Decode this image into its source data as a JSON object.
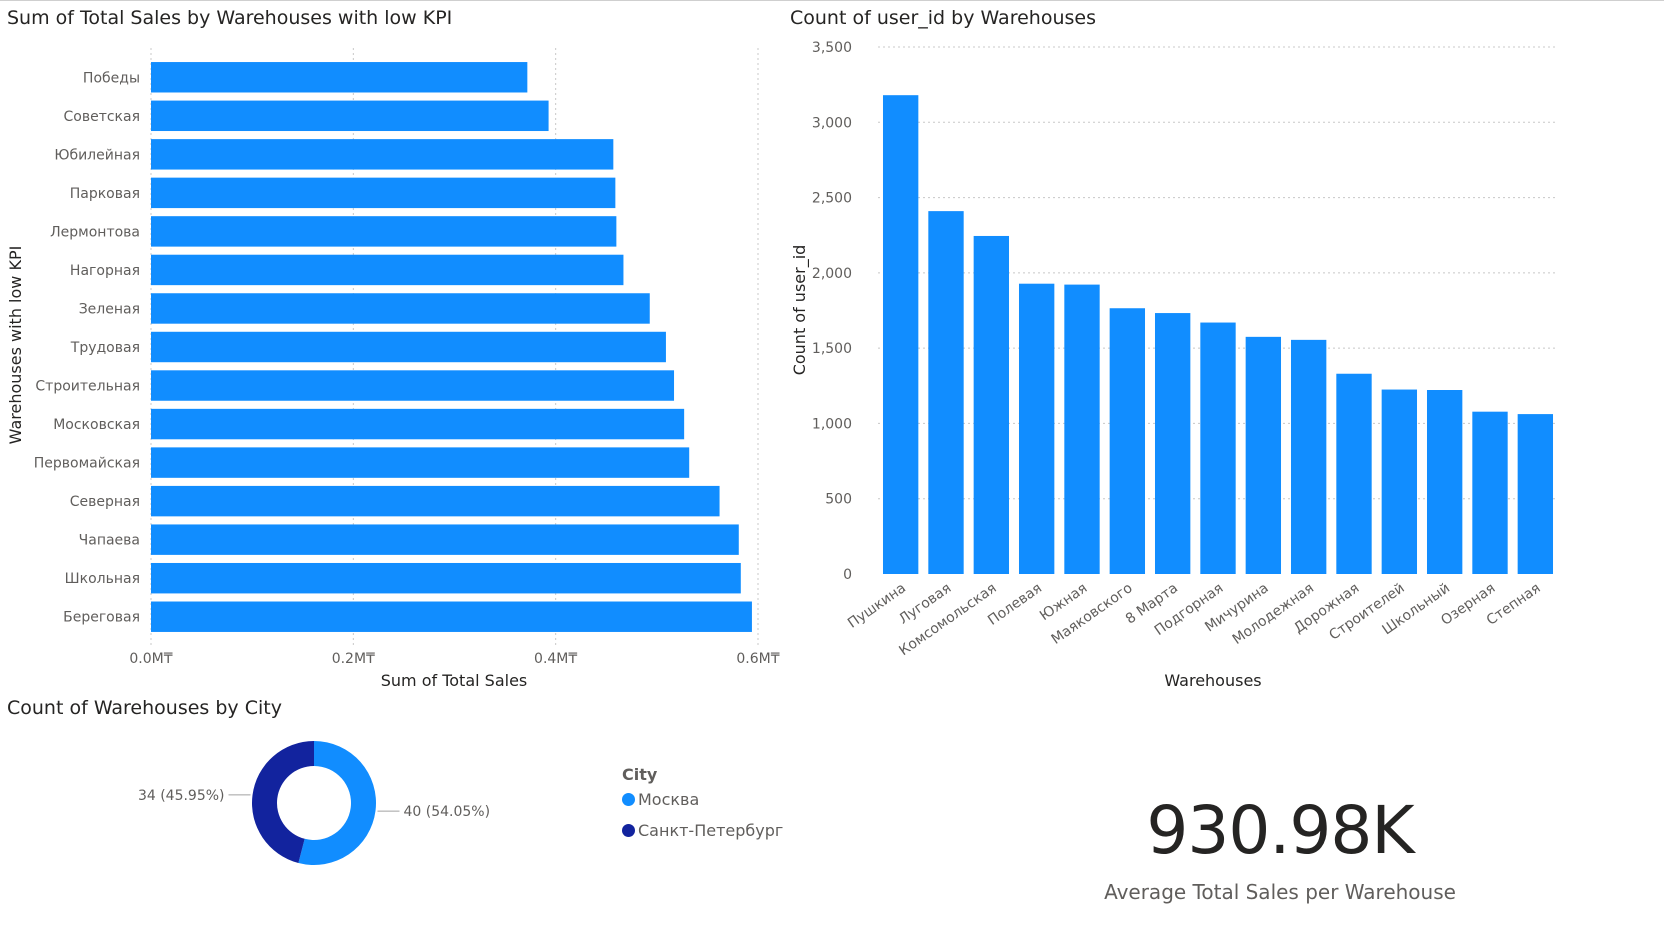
{
  "colors": {
    "bar": "#118dff",
    "dark": "#12239e",
    "grid": "#c8c8c8",
    "text": "#605e5c",
    "title": "#252423"
  },
  "bar_chart": {
    "title": "Sum of Total Sales by Warehouses with low KPI",
    "xlabel": "Sum of Total Sales",
    "ylabel": "Warehouses with low KPI",
    "tick_labels": [
      "0.0M₸",
      "0.2M₸",
      "0.4M₸",
      "0.6M₸"
    ]
  },
  "column_chart": {
    "title": "Count of user_id by Warehouses",
    "xlabel": "Warehouses",
    "ylabel": "Count of user_id",
    "tick_labels": [
      "0",
      "500",
      "1,000",
      "1,500",
      "2,000",
      "2,500",
      "3,000",
      "3,500"
    ]
  },
  "donut_chart": {
    "title": "Count of Warehouses by City",
    "legend_title": "City",
    "slice_labels": [
      "40 (54.05%)",
      "34 (45.95%)"
    ]
  },
  "card": {
    "value": "930.98K",
    "label": "Average Total Sales per Warehouse"
  },
  "chart_data": [
    {
      "type": "bar",
      "orientation": "horizontal",
      "title": "Sum of Total Sales by Warehouses with low KPI",
      "xlabel": "Sum of Total Sales",
      "ylabel": "Warehouses with low KPI",
      "xlim": [
        0,
        0.6
      ],
      "unit": "M₸",
      "grid": true,
      "categories": [
        "Победы",
        "Советская",
        "Юбилейная",
        "Парковая",
        "Лермонтова",
        "Нагорная",
        "Зеленая",
        "Трудовая",
        "Строительная",
        "Московская",
        "Первомайская",
        "Северная",
        "Чапаева",
        "Школьная",
        "Береговая"
      ],
      "values": [
        0.372,
        0.393,
        0.457,
        0.459,
        0.46,
        0.467,
        0.493,
        0.509,
        0.517,
        0.527,
        0.532,
        0.562,
        0.581,
        0.583,
        0.594
      ]
    },
    {
      "type": "bar",
      "orientation": "vertical",
      "title": "Count of user_id by Warehouses",
      "xlabel": "Warehouses",
      "ylabel": "Count of user_id",
      "ylim": [
        0,
        3500
      ],
      "grid": true,
      "categories": [
        "Пушкина",
        "Луговая",
        "Комсомольская",
        "Полевая",
        "Южная",
        "Маяковского",
        "8 Марта",
        "Подгорная",
        "Мичурина",
        "Молодежная",
        "Дорожная",
        "Строителей",
        "Школьный",
        "Озерная",
        "Степная"
      ],
      "values": [
        3180,
        2410,
        2245,
        1928,
        1922,
        1765,
        1733,
        1670,
        1575,
        1555,
        1330,
        1225,
        1222,
        1078,
        1062
      ]
    },
    {
      "type": "pie",
      "title": "Count of Warehouses by City",
      "legend_title": "City",
      "legend_position": "right",
      "categories": [
        "Москва",
        "Санкт-Петербург"
      ],
      "values": [
        40,
        34
      ],
      "percentages": [
        54.05,
        45.95
      ],
      "colors": [
        "#118dff",
        "#12239e"
      ]
    }
  ]
}
